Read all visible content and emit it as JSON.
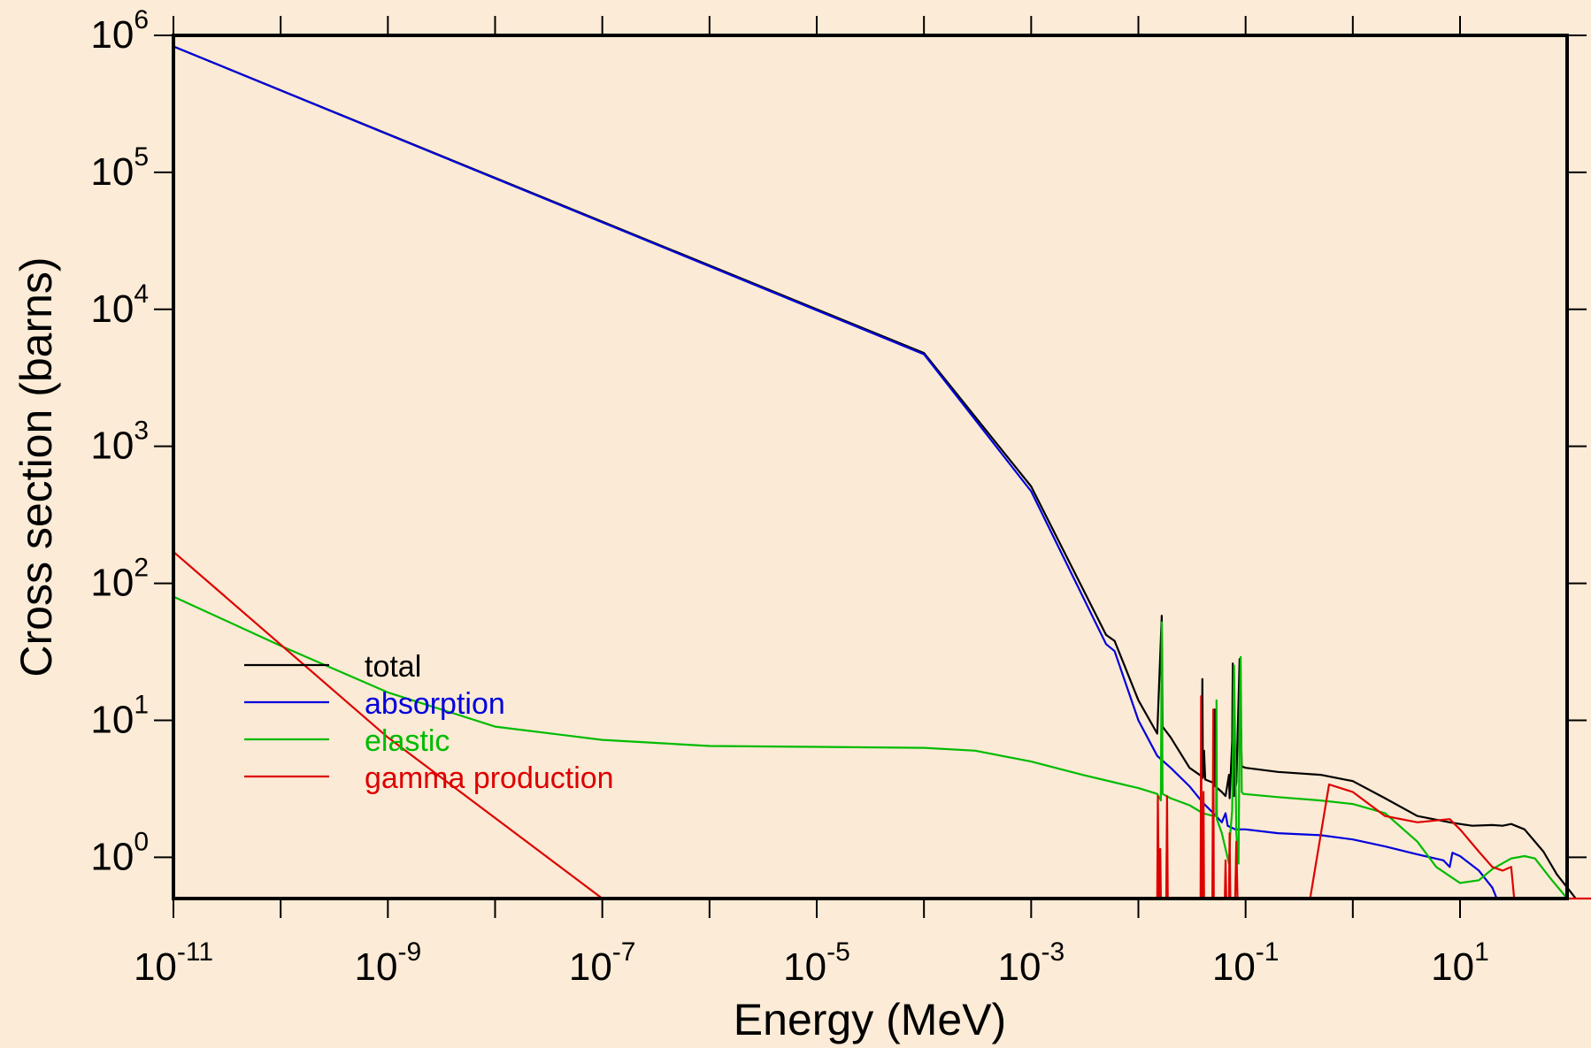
{
  "chart_data": {
    "type": "line",
    "title": "",
    "xlabel": "Energy (MeV)",
    "ylabel": "Cross section (barns)",
    "x_scale": "log",
    "y_scale": "log",
    "xlim": [
      1e-11,
      200
    ],
    "ylim": [
      0.5,
      1000000
    ],
    "x_tick_labels": [
      {
        "base": "10",
        "exp": "-11",
        "value": 1e-11
      },
      {
        "base": "10",
        "exp": "-9",
        "value": 1e-09
      },
      {
        "base": "10",
        "exp": "-7",
        "value": 1e-07
      },
      {
        "base": "10",
        "exp": "-5",
        "value": 1e-05
      },
      {
        "base": "10",
        "exp": "-3",
        "value": 0.001
      },
      {
        "base": "10",
        "exp": "-1",
        "value": 0.1
      },
      {
        "base": "10",
        "exp": "1",
        "value": 10
      }
    ],
    "y_tick_labels": [
      {
        "base": "10",
        "exp": "0",
        "value": 1
      },
      {
        "base": "10",
        "exp": "1",
        "value": 10
      },
      {
        "base": "10",
        "exp": "2",
        "value": 100
      },
      {
        "base": "10",
        "exp": "3",
        "value": 1000
      },
      {
        "base": "10",
        "exp": "4",
        "value": 10000
      },
      {
        "base": "10",
        "exp": "5",
        "value": 100000
      },
      {
        "base": "10",
        "exp": "6",
        "value": 1000000
      }
    ],
    "grid": false,
    "legend_position": "lower-left",
    "series": [
      {
        "name": "total",
        "color": "#000000",
        "points": [
          [
            1e-11,
            830000
          ],
          [
            0.0001,
            4800
          ],
          [
            0.001,
            510
          ],
          [
            0.005,
            42
          ],
          [
            0.006,
            38
          ],
          [
            0.01,
            14
          ],
          [
            0.015,
            8
          ],
          [
            0.0165,
            58
          ],
          [
            0.0168,
            9
          ],
          [
            0.02,
            7.5
          ],
          [
            0.03,
            4.5
          ],
          [
            0.039,
            3.9
          ],
          [
            0.0395,
            20
          ],
          [
            0.04,
            3.8
          ],
          [
            0.041,
            6
          ],
          [
            0.042,
            3.7
          ],
          [
            0.05,
            3.5
          ],
          [
            0.0515,
            12
          ],
          [
            0.052,
            3.3
          ],
          [
            0.06,
            3.0
          ],
          [
            0.065,
            2.8
          ],
          [
            0.07,
            4
          ],
          [
            0.071,
            2.7
          ],
          [
            0.075,
            7
          ],
          [
            0.076,
            26
          ],
          [
            0.078,
            2.8
          ],
          [
            0.082,
            3.5
          ],
          [
            0.088,
            28
          ],
          [
            0.092,
            4.6
          ],
          [
            0.1,
            4.5
          ],
          [
            0.2,
            4.2
          ],
          [
            0.5,
            4.0
          ],
          [
            1,
            3.6
          ],
          [
            2,
            2.7
          ],
          [
            4,
            2.0
          ],
          [
            8,
            1.8
          ],
          [
            10,
            1.75
          ],
          [
            13,
            1.7
          ],
          [
            20,
            1.72
          ],
          [
            25,
            1.7
          ],
          [
            30,
            1.75
          ],
          [
            40,
            1.6
          ],
          [
            60,
            1.1
          ],
          [
            80,
            0.75
          ],
          [
            100,
            0.6
          ],
          [
            120,
            0.5
          ]
        ]
      },
      {
        "name": "absorption",
        "color": "#0000dd",
        "points": [
          [
            1e-11,
            830000
          ],
          [
            0.0001,
            4700
          ],
          [
            0.001,
            470
          ],
          [
            0.005,
            36
          ],
          [
            0.006,
            32
          ],
          [
            0.01,
            10
          ],
          [
            0.015,
            5.5
          ],
          [
            0.02,
            4.5
          ],
          [
            0.03,
            3.3
          ],
          [
            0.04,
            2.5
          ],
          [
            0.05,
            2.1
          ],
          [
            0.06,
            1.8
          ],
          [
            0.065,
            2.1
          ],
          [
            0.068,
            1.7
          ],
          [
            0.08,
            1.6
          ],
          [
            0.1,
            1.6
          ],
          [
            0.2,
            1.5
          ],
          [
            0.5,
            1.45
          ],
          [
            1,
            1.35
          ],
          [
            2,
            1.2
          ],
          [
            4,
            1.05
          ],
          [
            7,
            0.95
          ],
          [
            8,
            0.85
          ],
          [
            8.5,
            1.08
          ],
          [
            10,
            1.02
          ],
          [
            15,
            0.8
          ],
          [
            20,
            0.6
          ],
          [
            22,
            0.5
          ]
        ]
      },
      {
        "name": "elastic",
        "color": "#00bb00",
        "points": [
          [
            1e-11,
            80
          ],
          [
            1e-10,
            35
          ],
          [
            1e-09,
            16
          ],
          [
            1e-08,
            9
          ],
          [
            1e-07,
            7.2
          ],
          [
            1e-06,
            6.5
          ],
          [
            1e-05,
            6.4
          ],
          [
            0.0001,
            6.3
          ],
          [
            0.0003,
            6
          ],
          [
            0.001,
            5
          ],
          [
            0.003,
            4
          ],
          [
            0.01,
            3.2
          ],
          [
            0.015,
            2.9
          ],
          [
            0.0162,
            2.6
          ],
          [
            0.0165,
            52
          ],
          [
            0.0168,
            2.9
          ],
          [
            0.02,
            2.7
          ],
          [
            0.03,
            2.4
          ],
          [
            0.04,
            2.1
          ],
          [
            0.05,
            2
          ],
          [
            0.053,
            2
          ],
          [
            0.0535,
            14
          ],
          [
            0.054,
            1.9
          ],
          [
            0.06,
            1.5
          ],
          [
            0.07,
            0.9
          ],
          [
            0.072,
            1.5
          ],
          [
            0.075,
            2.2
          ],
          [
            0.078,
            25
          ],
          [
            0.082,
            1.5
          ],
          [
            0.086,
            0.9
          ],
          [
            0.088,
            10
          ],
          [
            0.09,
            29
          ],
          [
            0.092,
            3
          ],
          [
            0.095,
            2.9
          ],
          [
            0.2,
            2.75
          ],
          [
            0.5,
            2.6
          ],
          [
            1,
            2.45
          ],
          [
            2,
            2.1
          ],
          [
            4,
            1.3
          ],
          [
            6,
            0.85
          ],
          [
            10,
            0.65
          ],
          [
            15,
            0.68
          ],
          [
            20,
            0.82
          ],
          [
            30,
            0.98
          ],
          [
            40,
            1.02
          ],
          [
            50,
            0.98
          ],
          [
            70,
            0.7
          ],
          [
            100,
            0.5
          ]
        ]
      },
      {
        "name": "gamma production",
        "color": "#dd0000",
        "points": [
          [
            1e-11,
            170
          ],
          [
            1e-09,
            7.5
          ],
          [
            1e-07,
            0.5
          ],
          [
            0.015,
            0.5
          ],
          [
            0.0152,
            2.8
          ],
          [
            0.0155,
            0.5
          ],
          [
            0.0158,
            0.5
          ],
          [
            0.016,
            1.15
          ],
          [
            0.0162,
            0.5
          ],
          [
            0.0182,
            0.5
          ],
          [
            0.0185,
            2.8
          ],
          [
            0.0188,
            0.5
          ],
          [
            0.038,
            0.5
          ],
          [
            0.0385,
            15
          ],
          [
            0.039,
            0.5
          ],
          [
            0.04,
            0.5
          ],
          [
            0.0405,
            3
          ],
          [
            0.041,
            0.5
          ],
          [
            0.049,
            0.5
          ],
          [
            0.05,
            12
          ],
          [
            0.0505,
            0.5
          ],
          [
            0.064,
            0.5
          ],
          [
            0.065,
            0.95
          ],
          [
            0.066,
            0.5
          ],
          [
            0.07,
            0.5
          ],
          [
            0.071,
            1.5
          ],
          [
            0.072,
            0.5
          ],
          [
            0.08,
            0.5
          ],
          [
            0.082,
            1.3
          ],
          [
            0.084,
            0.5
          ],
          [
            0.4,
            0.5
          ],
          [
            0.6,
            3.4
          ],
          [
            1,
            3.0
          ],
          [
            2,
            2.0
          ],
          [
            4,
            1.8
          ],
          [
            8,
            1.9
          ],
          [
            10,
            1.6
          ],
          [
            15,
            1.1
          ],
          [
            20,
            0.85
          ],
          [
            25,
            0.8
          ],
          [
            30,
            0.85
          ],
          [
            32,
            0.5
          ],
          [
            200,
            0.5
          ]
        ]
      }
    ]
  }
}
